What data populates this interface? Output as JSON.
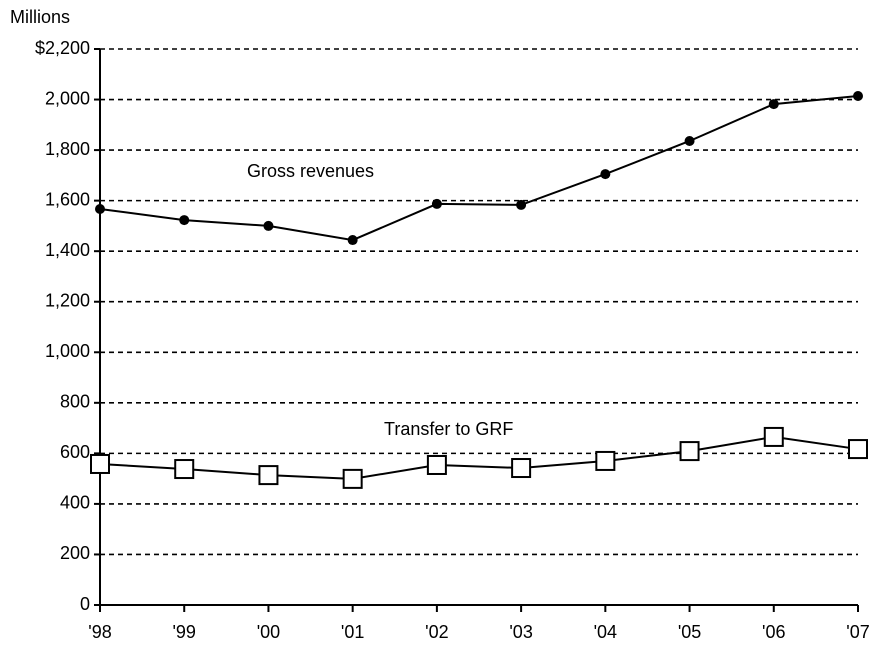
{
  "chart_data": {
    "type": "line",
    "y_axis_unit": "Millions",
    "categories": [
      "'98",
      "'99",
      "'00",
      "'01",
      "'02",
      "'03",
      "'04",
      "'05",
      "'06",
      "'07"
    ],
    "series": [
      {
        "name": "Gross revenues",
        "color": "#000000",
        "marker": "circle",
        "values": [
          1567,
          1523,
          1500,
          1444,
          1587,
          1583,
          1705,
          1836,
          1982,
          2014
        ]
      },
      {
        "name": "Transfer to GRF",
        "color": "#000000",
        "marker": "square",
        "values": [
          558,
          538,
          514,
          499,
          554,
          542,
          570,
          609,
          665,
          617
        ]
      }
    ],
    "ylim": [
      0,
      2200
    ],
    "yticks": [
      0,
      200,
      400,
      600,
      800,
      {
        "value": 1000,
        "label": "1,000"
      },
      {
        "value": 1200,
        "label": "1,200"
      },
      {
        "value": 1400,
        "label": "1,400"
      },
      {
        "value": 1600,
        "label": "1,600"
      },
      {
        "value": 1800,
        "label": "1,800"
      },
      {
        "value": 2000,
        "label": "2,000"
      },
      {
        "value": 2200,
        "label": "$2,200"
      }
    ],
    "grid": true
  }
}
